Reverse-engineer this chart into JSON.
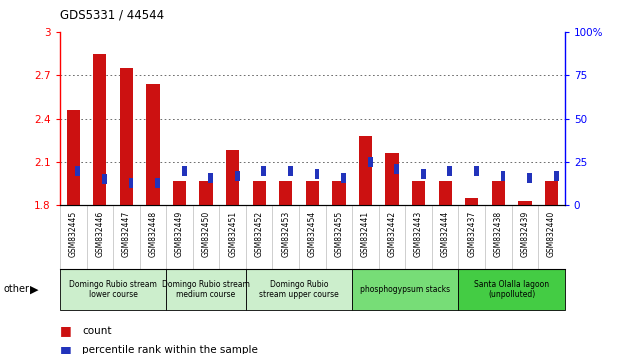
{
  "title": "GDS5331 / 44544",
  "samples": [
    "GSM832445",
    "GSM832446",
    "GSM832447",
    "GSM832448",
    "GSM832449",
    "GSM832450",
    "GSM832451",
    "GSM832452",
    "GSM832453",
    "GSM832454",
    "GSM832455",
    "GSM832441",
    "GSM832442",
    "GSM832443",
    "GSM832444",
    "GSM832437",
    "GSM832438",
    "GSM832439",
    "GSM832440"
  ],
  "count_values": [
    2.46,
    2.85,
    2.75,
    2.64,
    1.97,
    1.97,
    2.18,
    1.97,
    1.97,
    1.97,
    1.97,
    2.28,
    2.16,
    1.97,
    1.97,
    1.85,
    1.97,
    1.83,
    1.97
  ],
  "percentile_values": [
    20,
    15,
    13,
    13,
    20,
    16,
    17,
    20,
    20,
    18,
    16,
    25,
    21,
    18,
    20,
    20,
    17,
    16,
    17
  ],
  "ymin": 1.8,
  "ymax": 3.0,
  "y2min": 0,
  "y2max": 100,
  "yticks": [
    1.8,
    2.1,
    2.4,
    2.7,
    3.0
  ],
  "y2ticks": [
    0,
    25,
    50,
    75,
    100
  ],
  "bar_color": "#cc1111",
  "percentile_color": "#2233bb",
  "bar_width": 0.5,
  "percentile_bar_width": 0.18,
  "groups": [
    {
      "label": "Domingo Rubio stream\nlower course",
      "start": 0,
      "end": 3,
      "color": "#cceecc"
    },
    {
      "label": "Domingo Rubio stream\nmedium course",
      "start": 4,
      "end": 6,
      "color": "#cceecc"
    },
    {
      "label": "Domingo Rubio\nstream upper course",
      "start": 7,
      "end": 10,
      "color": "#cceecc"
    },
    {
      "label": "phosphogypsum stacks",
      "start": 11,
      "end": 14,
      "color": "#77dd77"
    },
    {
      "label": "Santa Olalla lagoon\n(unpolluted)",
      "start": 15,
      "end": 18,
      "color": "#44cc44"
    }
  ],
  "legend_count_label": "count",
  "legend_percentile_label": "percentile rank within the sample",
  "other_label": "other",
  "grid_color": "#555555",
  "xtick_bg": "#d8d8d8"
}
